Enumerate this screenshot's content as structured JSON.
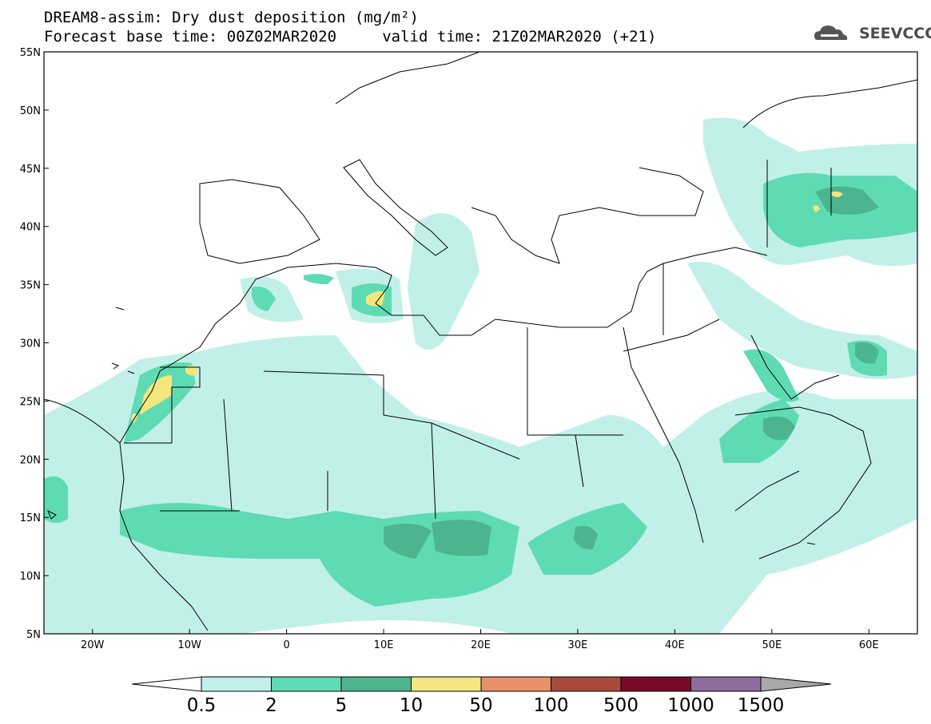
{
  "header": {
    "title_line1": "DREAM8-assim: Dry dust deposition (mg/m²)",
    "title_line2": "Forecast base time: 00Z02MAR2020     valid time: 21Z02MAR2020 (+21)",
    "logo_text": "SEEVCCC"
  },
  "map": {
    "lon_range": [
      -25,
      65
    ],
    "lat_range": [
      5,
      55
    ],
    "lon_ticks": [
      {
        "value": -20,
        "label": "20W"
      },
      {
        "value": -10,
        "label": "10W"
      },
      {
        "value": 0,
        "label": "0"
      },
      {
        "value": 10,
        "label": "10E"
      },
      {
        "value": 20,
        "label": "20E"
      },
      {
        "value": 30,
        "label": "30E"
      },
      {
        "value": 40,
        "label": "40E"
      },
      {
        "value": 50,
        "label": "50E"
      },
      {
        "value": 60,
        "label": "60E"
      }
    ],
    "lat_ticks": [
      {
        "value": 55,
        "label": "55N"
      },
      {
        "value": 50,
        "label": "50N"
      },
      {
        "value": 45,
        "label": "45N"
      },
      {
        "value": 40,
        "label": "40N"
      },
      {
        "value": 35,
        "label": "35N"
      },
      {
        "value": 30,
        "label": "30N"
      },
      {
        "value": 25,
        "label": "25N"
      },
      {
        "value": 20,
        "label": "20N"
      },
      {
        "value": 15,
        "label": "15N"
      },
      {
        "value": 10,
        "label": "10N"
      },
      {
        "value": 5,
        "label": "5N"
      }
    ]
  },
  "colorbar": {
    "bins": [
      {
        "color": "#c1f0e8"
      },
      {
        "color": "#5fdbb4"
      },
      {
        "color": "#4cb58f"
      },
      {
        "color": "#f2e77e"
      },
      {
        "color": "#e8906a"
      },
      {
        "color": "#a84a3c"
      },
      {
        "color": "#7a0a2a"
      },
      {
        "color": "#8e6c9e"
      },
      {
        "color": "#a8a8a8"
      }
    ],
    "labels": [
      "0.5",
      "2",
      "5",
      "10",
      "50",
      "100",
      "500",
      "1000",
      "1500"
    ]
  }
}
